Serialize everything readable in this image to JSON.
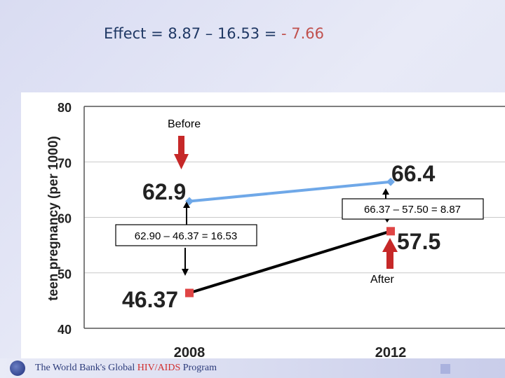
{
  "title": {
    "main": "Effect = 8.87 – 16.53 = ",
    "result": "- 7.66",
    "result_color": "#c0504d"
  },
  "chart_data": {
    "type": "line",
    "ylabel": "teen pregnancy (per 1000)",
    "xlabel": "",
    "categories": [
      "2008",
      "2012"
    ],
    "ylim": [
      40,
      80
    ],
    "yticks": [
      40,
      50,
      60,
      70,
      80
    ],
    "grid": true,
    "series": [
      {
        "values": [
          62.9,
          66.4
        ],
        "labels": [
          "62.9",
          "66.4"
        ],
        "color": "#6fa8e8",
        "marker": "diamond"
      },
      {
        "values": [
          46.37,
          57.5
        ],
        "labels": [
          "46.37",
          "57.5"
        ],
        "color": "#000000",
        "marker": "square",
        "marker_color": "#e04545"
      }
    ],
    "annotations": {
      "before": "Before",
      "after": "After",
      "diff_2008": "62.90 – 46.37 = 16.53",
      "diff_2012": "66.37 – 57.50 = 8.87"
    },
    "arrow_color": "#c62828"
  },
  "footer": {
    "prefix": "The World Bank's Global ",
    "highlight": "HIV/AIDS",
    "suffix": " Program"
  }
}
